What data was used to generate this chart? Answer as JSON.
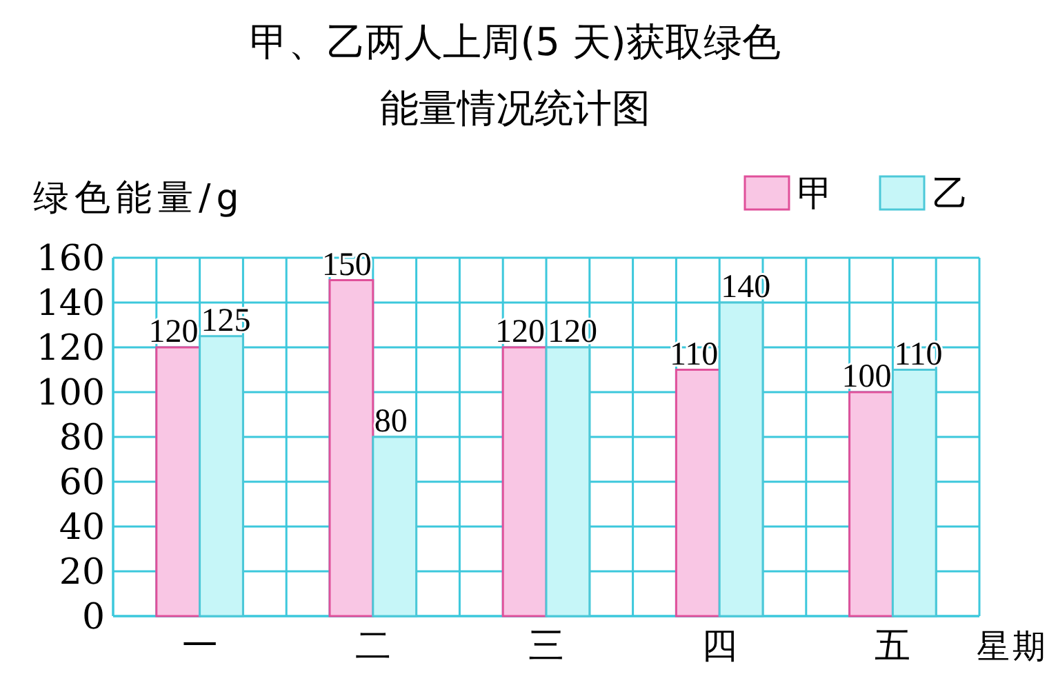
{
  "chart_data": {
    "type": "bar",
    "title": "甲、乙两人上周(5 天)获取绿色能量情况统计图",
    "ylabel": "绿色能量/g",
    "xlabel": "星期",
    "categories": [
      "一",
      "二",
      "三",
      "四",
      "五"
    ],
    "series": [
      {
        "name": "甲",
        "color": "#f9c6e4",
        "values": [
          120,
          150,
          120,
          110,
          100
        ]
      },
      {
        "name": "乙",
        "color": "#c6f6f8",
        "values": [
          125,
          80,
          120,
          140,
          110
        ]
      }
    ],
    "ylim": [
      0,
      160
    ],
    "yticks": [
      0,
      20,
      40,
      60,
      80,
      100,
      120,
      140,
      160
    ],
    "grid": true,
    "legend": "top right",
    "data_labels": true
  }
}
